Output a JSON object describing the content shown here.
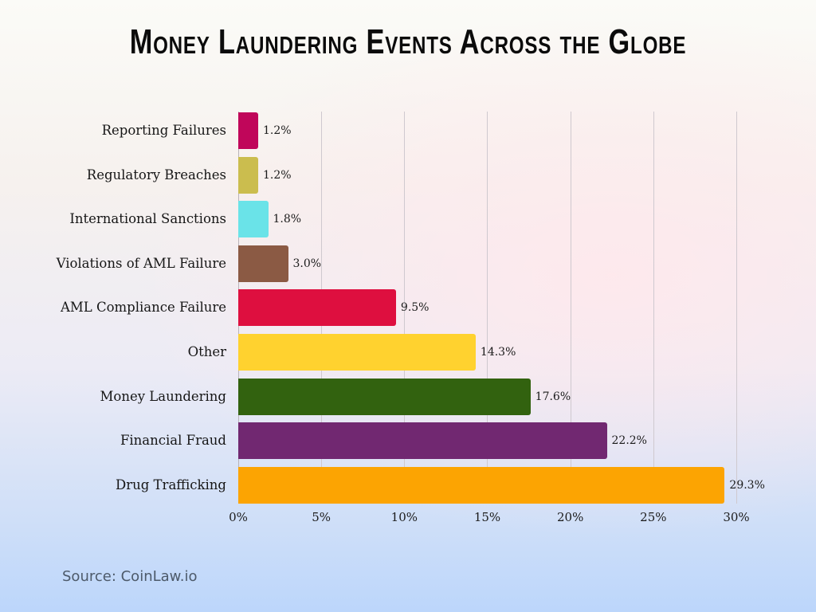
{
  "title": "Money Laundering Events Across the Globe",
  "source": "Source: CoinLaw.io",
  "chart_data": {
    "type": "bar",
    "orientation": "horizontal",
    "title": "Money Laundering Events Across the Globe",
    "xlabel": "",
    "ylabel": "",
    "xlim": [
      0,
      30
    ],
    "grid": true,
    "legend": "none",
    "x_ticks": [
      "0%",
      "5%",
      "10%",
      "15%",
      "20%",
      "25%",
      "30%"
    ],
    "categories": [
      "Reporting Failures",
      "Regulatory Breaches",
      "International Sanctions",
      "Violations of AML Failure",
      "AML Compliance Failure",
      "Other",
      "Money Laundering",
      "Financial Fraud",
      "Drug Trafficking"
    ],
    "values": [
      1.2,
      1.2,
      1.8,
      3.0,
      9.5,
      14.3,
      17.6,
      22.2,
      29.3
    ],
    "value_labels": [
      "1.2%",
      "1.2%",
      "1.8%",
      "3.0%",
      "9.5%",
      "14.3%",
      "17.6%",
      "22.2%",
      "29.3%"
    ],
    "colors": [
      "#c0065a",
      "#cbbd4e",
      "#6ae3e8",
      "#8b5a44",
      "#de0f3f",
      "#ffd22f",
      "#32620f",
      "#712871",
      "#fca402"
    ],
    "source": "CoinLaw.io"
  }
}
